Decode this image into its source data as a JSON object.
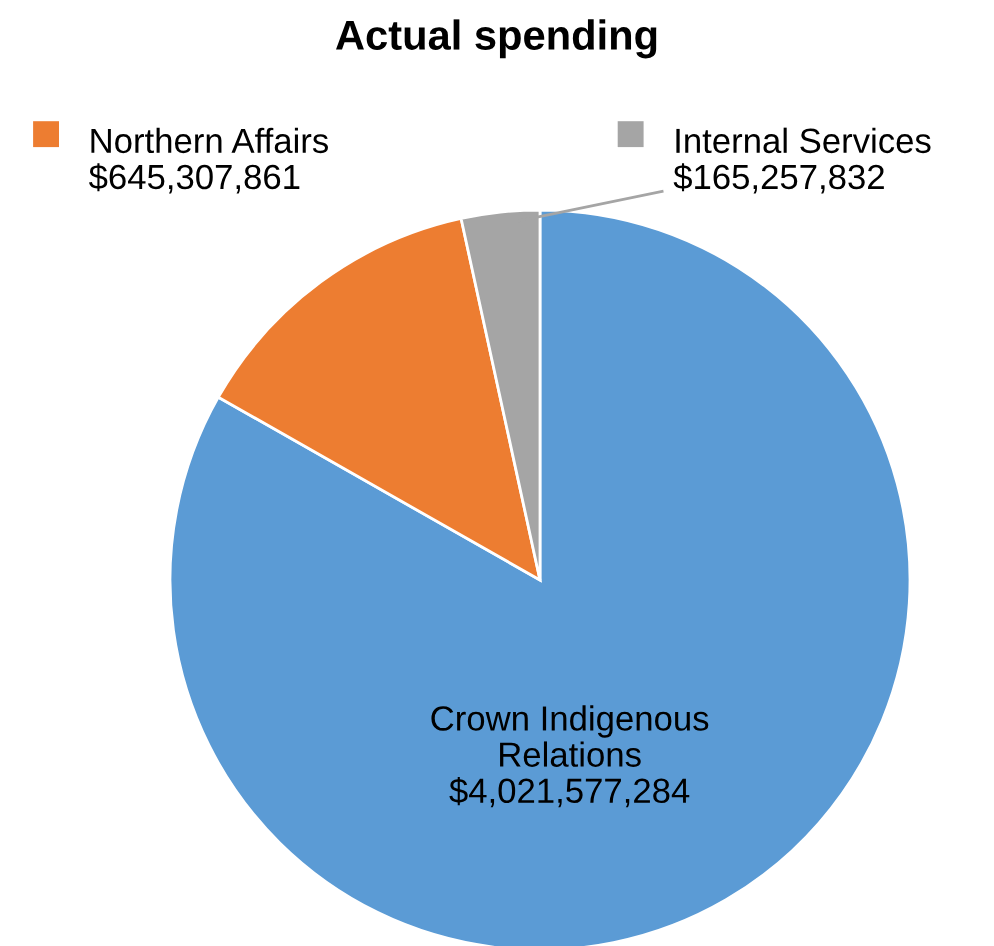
{
  "chart_data": {
    "type": "pie",
    "title": "Actual spending",
    "categories": [
      "Crown Indigenous\nRelations",
      "Northern Affairs",
      "Internal Services"
    ],
    "values": [
      4021577284,
      645307861,
      165257832
    ],
    "value_labels": [
      "$4,021,577,284",
      "$645,307,861",
      "$165,257,832"
    ],
    "colors": [
      "#5b9bd5",
      "#ed7d31",
      "#a5a5a5"
    ],
    "legend": "top"
  }
}
